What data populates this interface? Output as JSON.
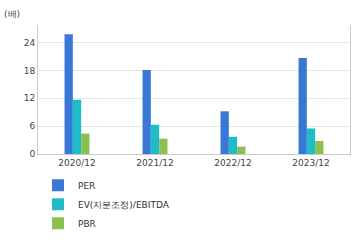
{
  "chart_data": {
    "type": "bar",
    "ylabel": "(배)",
    "categories": [
      "2020/12",
      "2021/12",
      "2022/12",
      "2023/12"
    ],
    "series": [
      {
        "name": "PER",
        "color": "#3a78d8",
        "values": [
          25.8,
          18.1,
          9.2,
          20.7
        ]
      },
      {
        "name": "EV(지분조정)/EBITDA",
        "color": "#1ebcc8",
        "values": [
          11.7,
          6.3,
          3.7,
          5.5
        ]
      },
      {
        "name": "PBR",
        "color": "#8cc152",
        "values": [
          4.4,
          3.3,
          1.6,
          2.8
        ]
      }
    ],
    "ylim": [
      0,
      27.8
    ],
    "yticks": [
      0,
      6,
      12,
      18,
      24
    ],
    "grid": true,
    "legend": "bottom"
  }
}
